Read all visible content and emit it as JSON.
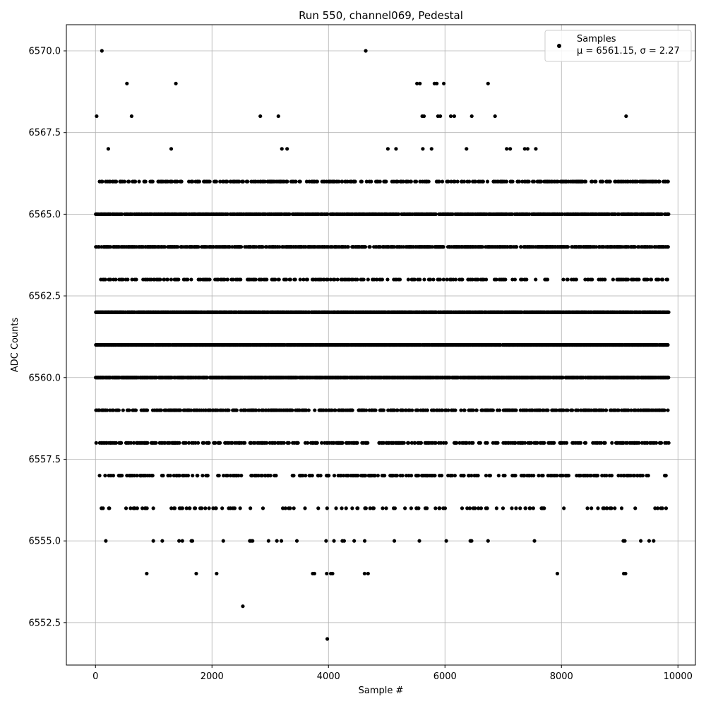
{
  "chart_data": {
    "type": "scatter",
    "title": "Run 550, channel069, Pedestal",
    "xlabel": "Sample #",
    "ylabel": "ADC Counts",
    "xlim": [
      -500,
      10300
    ],
    "ylim": [
      6551.2,
      6570.8
    ],
    "xticks": [
      0,
      2000,
      4000,
      6000,
      8000,
      10000
    ],
    "xtick_labels": [
      "0",
      "2000",
      "4000",
      "6000",
      "8000",
      "10000"
    ],
    "yticks": [
      6552.5,
      6555.0,
      6557.5,
      6560.0,
      6562.5,
      6565.0,
      6567.5,
      6570.0
    ],
    "ytick_labels": [
      "6552.5",
      "6555.0",
      "6557.5",
      "6560.0",
      "6562.5",
      "6565.0",
      "6567.5",
      "6570.0"
    ],
    "grid": true,
    "legend_position": "top-right",
    "series": [
      {
        "name": "Samples",
        "stats_label": "μ = 6561.15, σ = 2.27",
        "marker_color": "#000000",
        "x_range": [
          0,
          9840
        ],
        "mean": 6561.15,
        "std": 2.27,
        "outliers": [
          {
            "x": 110,
            "y": 6570
          },
          {
            "x": 4640,
            "y": 6570
          },
          {
            "x": 540,
            "y": 6569
          },
          {
            "x": 1380,
            "y": 6569
          },
          {
            "x": 5520,
            "y": 6569
          },
          {
            "x": 5570,
            "y": 6569
          },
          {
            "x": 5820,
            "y": 6569
          },
          {
            "x": 5860,
            "y": 6569
          },
          {
            "x": 5980,
            "y": 6569
          },
          {
            "x": 6740,
            "y": 6569
          },
          {
            "x": 20,
            "y": 6568
          },
          {
            "x": 620,
            "y": 6568
          },
          {
            "x": 2830,
            "y": 6568
          },
          {
            "x": 3140,
            "y": 6568
          },
          {
            "x": 5610,
            "y": 6568
          },
          {
            "x": 5640,
            "y": 6568
          },
          {
            "x": 5880,
            "y": 6568
          },
          {
            "x": 5920,
            "y": 6568
          },
          {
            "x": 6100,
            "y": 6568
          },
          {
            "x": 6160,
            "y": 6568
          },
          {
            "x": 6460,
            "y": 6568
          },
          {
            "x": 6860,
            "y": 6568
          },
          {
            "x": 9110,
            "y": 6568
          },
          {
            "x": 220,
            "y": 6567
          },
          {
            "x": 1300,
            "y": 6567
          },
          {
            "x": 3200,
            "y": 6567
          },
          {
            "x": 3290,
            "y": 6567
          },
          {
            "x": 5020,
            "y": 6567
          },
          {
            "x": 5160,
            "y": 6567
          },
          {
            "x": 5620,
            "y": 6567
          },
          {
            "x": 5770,
            "y": 6567
          },
          {
            "x": 6370,
            "y": 6567
          },
          {
            "x": 7060,
            "y": 6567
          },
          {
            "x": 7120,
            "y": 6567
          },
          {
            "x": 7370,
            "y": 6567
          },
          {
            "x": 7420,
            "y": 6567
          },
          {
            "x": 7560,
            "y": 6567
          },
          {
            "x": 880,
            "y": 6554
          },
          {
            "x": 1730,
            "y": 6554
          },
          {
            "x": 2080,
            "y": 6554
          },
          {
            "x": 3730,
            "y": 6554
          },
          {
            "x": 3760,
            "y": 6554
          },
          {
            "x": 3970,
            "y": 6554
          },
          {
            "x": 4040,
            "y": 6554
          },
          {
            "x": 4070,
            "y": 6554
          },
          {
            "x": 4620,
            "y": 6554
          },
          {
            "x": 4680,
            "y": 6554
          },
          {
            "x": 7930,
            "y": 6554
          },
          {
            "x": 9070,
            "y": 6554
          },
          {
            "x": 9100,
            "y": 6554
          },
          {
            "x": 2530,
            "y": 6553
          },
          {
            "x": 3980,
            "y": 6552
          }
        ]
      }
    ]
  }
}
